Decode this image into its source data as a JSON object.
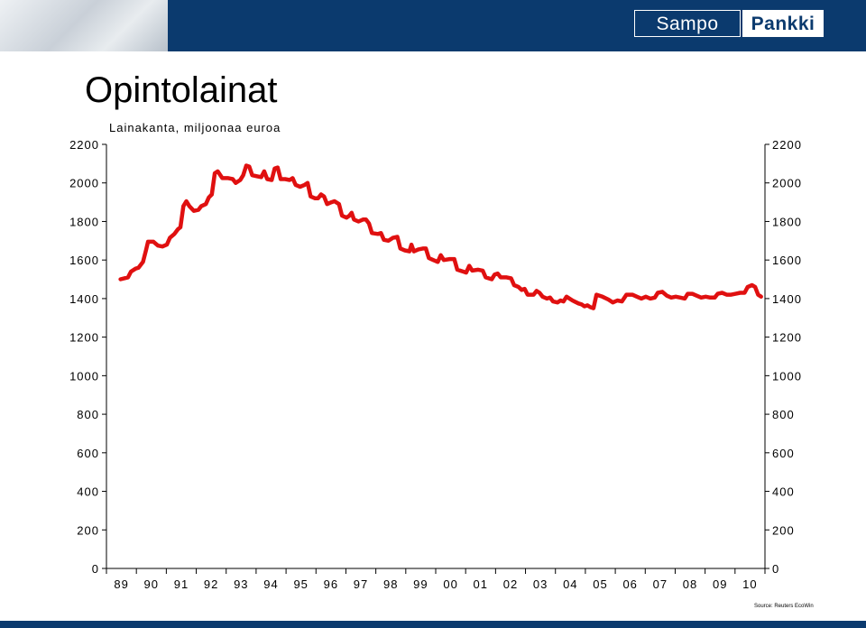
{
  "header": {
    "logo_left": "Sampo",
    "logo_right": "Pankki",
    "colors": {
      "brand": "#0b3a6e",
      "line": "#e01010"
    }
  },
  "footer": {
    "source": "Source: Reuters EcoWin"
  },
  "chart_data": {
    "type": "line",
    "title": "Opintolainat",
    "subtitle": "Lainakanta, miljoonaa euroa",
    "xlabel": "",
    "ylabel": "",
    "ylim": [
      0,
      2200
    ],
    "yticks": [
      0,
      200,
      400,
      600,
      800,
      1000,
      1200,
      1400,
      1600,
      1800,
      2000,
      2200
    ],
    "categories": [
      "89",
      "90",
      "91",
      "92",
      "93",
      "94",
      "95",
      "96",
      "97",
      "98",
      "99",
      "00",
      "01",
      "02",
      "03",
      "04",
      "05",
      "06",
      "07",
      "08",
      "09",
      "10"
    ],
    "grid": false,
    "x_start": 1989.0,
    "series": [
      {
        "name": "",
        "color": "#e01010",
        "points": [
          [
            1989.0,
            1500
          ],
          [
            1989.25,
            1510
          ],
          [
            1989.35,
            1540
          ],
          [
            1989.5,
            1555
          ],
          [
            1989.6,
            1560
          ],
          [
            1989.75,
            1590
          ],
          [
            1989.85,
            1650
          ],
          [
            1989.92,
            1695
          ],
          [
            1990.1,
            1695
          ],
          [
            1990.25,
            1675
          ],
          [
            1990.4,
            1670
          ],
          [
            1990.55,
            1680
          ],
          [
            1990.65,
            1715
          ],
          [
            1990.8,
            1735
          ],
          [
            1990.92,
            1760
          ],
          [
            1991.0,
            1770
          ],
          [
            1991.1,
            1880
          ],
          [
            1991.2,
            1905
          ],
          [
            1991.3,
            1880
          ],
          [
            1991.45,
            1855
          ],
          [
            1991.6,
            1860
          ],
          [
            1991.7,
            1880
          ],
          [
            1991.85,
            1890
          ],
          [
            1991.95,
            1925
          ],
          [
            1992.05,
            1940
          ],
          [
            1992.15,
            2050
          ],
          [
            1992.25,
            2060
          ],
          [
            1992.4,
            2025
          ],
          [
            1992.6,
            2025
          ],
          [
            1992.75,
            2020
          ],
          [
            1992.85,
            2000
          ],
          [
            1993.0,
            2015
          ],
          [
            1993.1,
            2040
          ],
          [
            1993.2,
            2090
          ],
          [
            1993.3,
            2085
          ],
          [
            1993.4,
            2040
          ],
          [
            1993.55,
            2035
          ],
          [
            1993.7,
            2030
          ],
          [
            1993.8,
            2060
          ],
          [
            1993.9,
            2020
          ],
          [
            1994.05,
            2015
          ],
          [
            1994.15,
            2075
          ],
          [
            1994.25,
            2080
          ],
          [
            1994.35,
            2020
          ],
          [
            1994.5,
            2020
          ],
          [
            1994.65,
            2015
          ],
          [
            1994.75,
            2025
          ],
          [
            1994.85,
            1990
          ],
          [
            1995.0,
            1980
          ],
          [
            1995.15,
            1990
          ],
          [
            1995.25,
            2000
          ],
          [
            1995.35,
            1930
          ],
          [
            1995.5,
            1920
          ],
          [
            1995.6,
            1920
          ],
          [
            1995.7,
            1940
          ],
          [
            1995.8,
            1930
          ],
          [
            1995.9,
            1890
          ],
          [
            1996.05,
            1900
          ],
          [
            1996.15,
            1905
          ],
          [
            1996.3,
            1890
          ],
          [
            1996.4,
            1830
          ],
          [
            1996.55,
            1820
          ],
          [
            1996.65,
            1830
          ],
          [
            1996.72,
            1845
          ],
          [
            1996.8,
            1810
          ],
          [
            1996.95,
            1800
          ],
          [
            1997.1,
            1810
          ],
          [
            1997.2,
            1810
          ],
          [
            1997.3,
            1790
          ],
          [
            1997.4,
            1740
          ],
          [
            1997.6,
            1735
          ],
          [
            1997.7,
            1740
          ],
          [
            1997.8,
            1705
          ],
          [
            1997.95,
            1700
          ],
          [
            1998.1,
            1715
          ],
          [
            1998.25,
            1720
          ],
          [
            1998.35,
            1660
          ],
          [
            1998.5,
            1650
          ],
          [
            1998.65,
            1645
          ],
          [
            1998.72,
            1680
          ],
          [
            1998.8,
            1645
          ],
          [
            1998.95,
            1655
          ],
          [
            1999.1,
            1660
          ],
          [
            1999.2,
            1660
          ],
          [
            1999.3,
            1610
          ],
          [
            1999.45,
            1600
          ],
          [
            1999.6,
            1590
          ],
          [
            1999.7,
            1625
          ],
          [
            1999.8,
            1600
          ],
          [
            2000.0,
            1605
          ],
          [
            2000.15,
            1605
          ],
          [
            2000.25,
            1550
          ],
          [
            2000.45,
            1540
          ],
          [
            2000.55,
            1535
          ],
          [
            2000.65,
            1570
          ],
          [
            2000.75,
            1545
          ],
          [
            2000.95,
            1550
          ],
          [
            2001.1,
            1545
          ],
          [
            2001.2,
            1510
          ],
          [
            2001.4,
            1500
          ],
          [
            2001.5,
            1525
          ],
          [
            2001.6,
            1530
          ],
          [
            2001.7,
            1510
          ],
          [
            2001.9,
            1510
          ],
          [
            2002.05,
            1505
          ],
          [
            2002.15,
            1470
          ],
          [
            2002.3,
            1460
          ],
          [
            2002.4,
            1445
          ],
          [
            2002.5,
            1450
          ],
          [
            2002.6,
            1420
          ],
          [
            2002.8,
            1420
          ],
          [
            2002.9,
            1440
          ],
          [
            2003.0,
            1430
          ],
          [
            2003.1,
            1410
          ],
          [
            2003.25,
            1400
          ],
          [
            2003.35,
            1405
          ],
          [
            2003.45,
            1385
          ],
          [
            2003.6,
            1380
          ],
          [
            2003.7,
            1390
          ],
          [
            2003.8,
            1385
          ],
          [
            2003.9,
            1410
          ],
          [
            2004.1,
            1390
          ],
          [
            2004.3,
            1375
          ],
          [
            2004.4,
            1370
          ],
          [
            2004.5,
            1360
          ],
          [
            2004.6,
            1365
          ],
          [
            2004.7,
            1355
          ],
          [
            2004.8,
            1350
          ],
          [
            2004.9,
            1420
          ],
          [
            2005.1,
            1410
          ],
          [
            2005.3,
            1395
          ],
          [
            2005.45,
            1380
          ],
          [
            2005.6,
            1390
          ],
          [
            2005.75,
            1385
          ],
          [
            2005.9,
            1420
          ],
          [
            2006.1,
            1420
          ],
          [
            2006.25,
            1410
          ],
          [
            2006.4,
            1400
          ],
          [
            2006.55,
            1410
          ],
          [
            2006.7,
            1400
          ],
          [
            2006.85,
            1405
          ],
          [
            2006.95,
            1430
          ],
          [
            2007.1,
            1435
          ],
          [
            2007.25,
            1415
          ],
          [
            2007.4,
            1405
          ],
          [
            2007.55,
            1410
          ],
          [
            2007.7,
            1405
          ],
          [
            2007.85,
            1400
          ],
          [
            2007.95,
            1425
          ],
          [
            2008.1,
            1425
          ],
          [
            2008.25,
            1415
          ],
          [
            2008.4,
            1405
          ],
          [
            2008.55,
            1410
          ],
          [
            2008.7,
            1405
          ],
          [
            2008.85,
            1405
          ],
          [
            2008.95,
            1425
          ],
          [
            2009.1,
            1430
          ],
          [
            2009.25,
            1420
          ],
          [
            2009.4,
            1420
          ],
          [
            2009.55,
            1425
          ],
          [
            2009.7,
            1430
          ],
          [
            2009.85,
            1430
          ],
          [
            2009.95,
            1460
          ],
          [
            2010.1,
            1470
          ],
          [
            2010.2,
            1460
          ],
          [
            2010.3,
            1420
          ],
          [
            2010.4,
            1410
          ]
        ]
      }
    ]
  }
}
